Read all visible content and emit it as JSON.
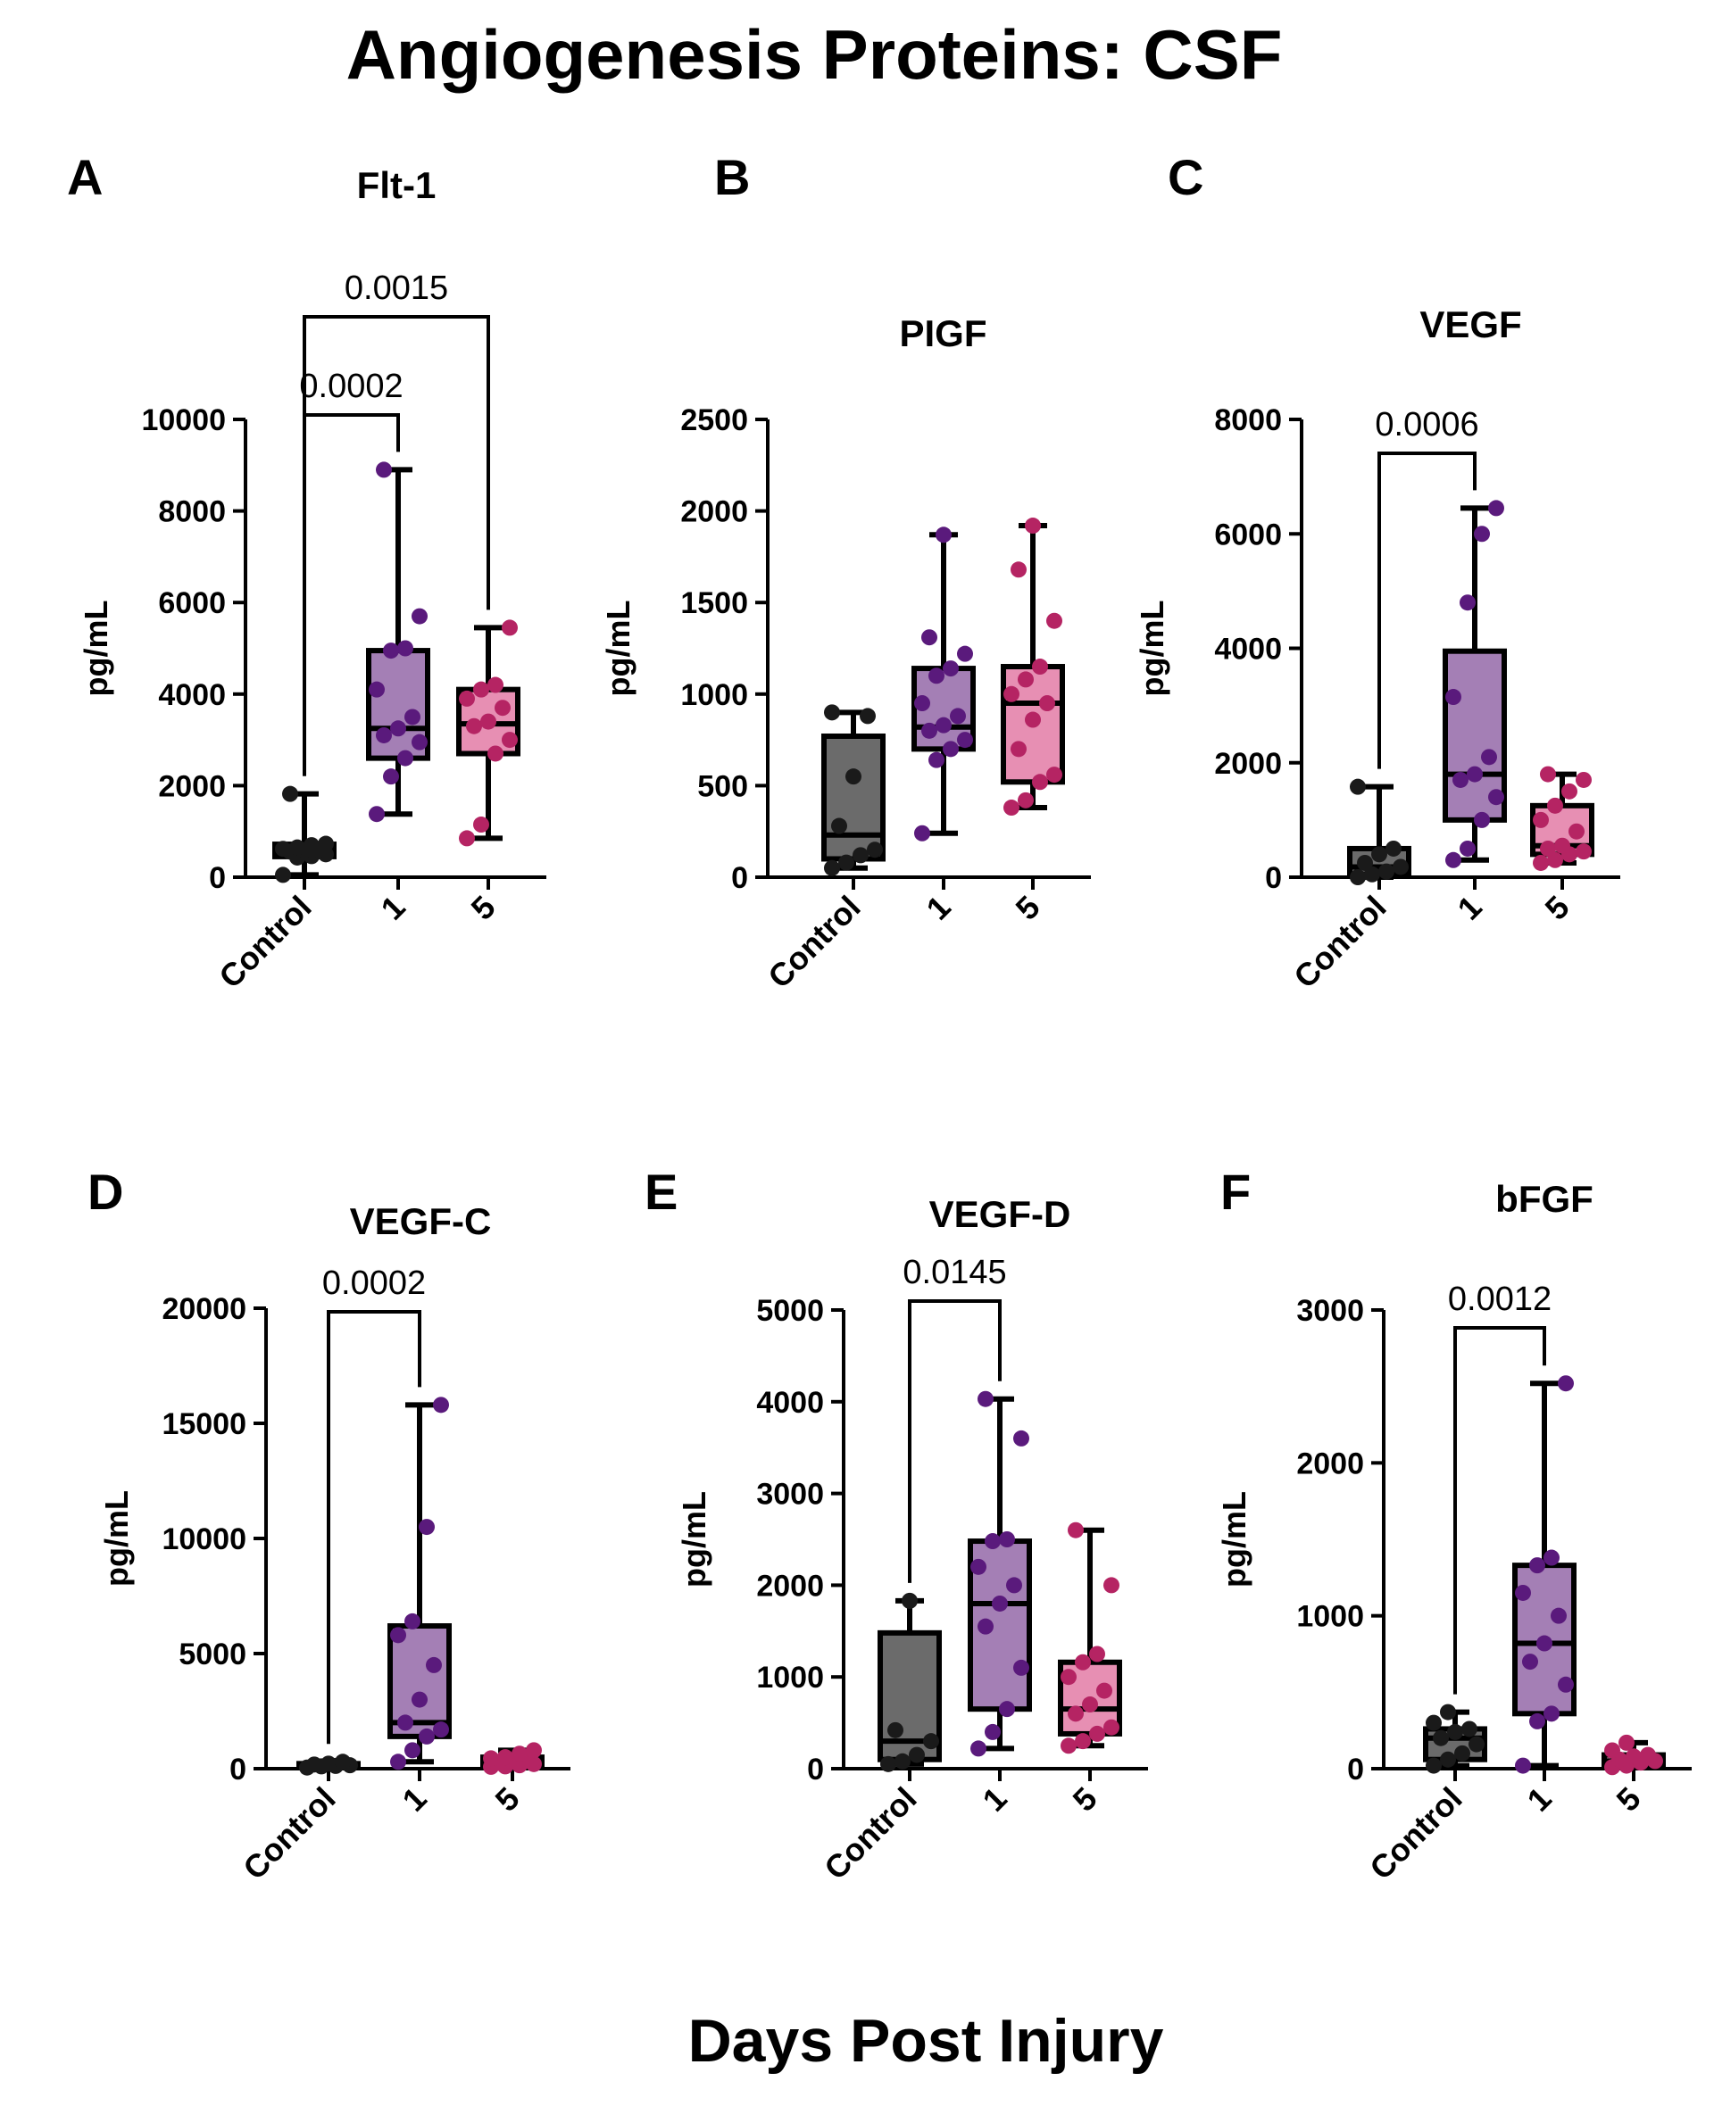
{
  "figure": {
    "title": "Angiogenesis Proteins: CSF",
    "xlabel": "Days Post Injury"
  },
  "colors": {
    "control_fill": "#6b6b6b",
    "day1_fill": "#a47fb5",
    "day5_fill": "#e78fb3",
    "control_dot": "#1a1a1a",
    "day1_dot": "#5a1a7c",
    "day5_dot": "#b52463",
    "axis": "#000000"
  },
  "chart_data": [
    {
      "panel": "A",
      "type": "box",
      "title": "Flt-1",
      "ylabel": "pg/mL",
      "categories": [
        "Control",
        "1",
        "5"
      ],
      "ylim": [
        0,
        10000
      ],
      "yticks": [
        0,
        2000,
        4000,
        6000,
        8000,
        10000
      ],
      "boxes": [
        {
          "min": 50,
          "q1": 450,
          "median": 600,
          "q3": 720,
          "max": 1820,
          "points": [
            50,
            430,
            460,
            500,
            560,
            590,
            600,
            620,
            650,
            700,
            730,
            1820
          ]
        },
        {
          "min": 1380,
          "q1": 2600,
          "median": 3250,
          "q3": 4950,
          "max": 8900,
          "points": [
            1380,
            2200,
            2600,
            2950,
            3100,
            3250,
            3500,
            4100,
            4950,
            5000,
            5700,
            8900
          ]
        },
        {
          "min": 850,
          "q1": 2700,
          "median": 3350,
          "q3": 4100,
          "max": 5450,
          "points": [
            850,
            1150,
            2700,
            3000,
            3300,
            3400,
            3700,
            3900,
            4100,
            4200,
            5450
          ]
        }
      ],
      "comparisons": [
        {
          "from": 0,
          "to": 1,
          "label": "0.0002",
          "level": 0
        },
        {
          "from": 0,
          "to": 2,
          "label": "0.0015",
          "level": 1
        }
      ]
    },
    {
      "panel": "B",
      "type": "box",
      "title": "PIGF",
      "ylabel": "pg/mL",
      "categories": [
        "Control",
        "1",
        "5"
      ],
      "ylim": [
        0,
        2500
      ],
      "yticks": [
        0,
        500,
        1000,
        1500,
        2000,
        2500
      ],
      "boxes": [
        {
          "min": 50,
          "q1": 100,
          "median": 230,
          "q3": 770,
          "max": 900,
          "points": [
            50,
            80,
            120,
            150,
            280,
            550,
            880,
            900
          ]
        },
        {
          "min": 240,
          "q1": 700,
          "median": 820,
          "q3": 1140,
          "max": 1870,
          "points": [
            240,
            640,
            700,
            750,
            800,
            830,
            880,
            950,
            1100,
            1140,
            1220,
            1310,
            1870
          ]
        },
        {
          "min": 380,
          "q1": 520,
          "median": 950,
          "q3": 1150,
          "max": 1920,
          "points": [
            380,
            420,
            520,
            560,
            700,
            860,
            950,
            1000,
            1080,
            1150,
            1400,
            1680,
            1920
          ]
        }
      ],
      "comparisons": []
    },
    {
      "panel": "C",
      "type": "box",
      "title": "VEGF",
      "ylabel": "pg/mL",
      "categories": [
        "Control",
        "1",
        "5"
      ],
      "ylim": [
        0,
        8000
      ],
      "yticks": [
        0,
        2000,
        4000,
        6000,
        8000
      ],
      "boxes": [
        {
          "min": 0,
          "q1": 50,
          "median": 180,
          "q3": 500,
          "max": 1580,
          "points": [
            0,
            50,
            100,
            180,
            250,
            400,
            500,
            1580
          ]
        },
        {
          "min": 300,
          "q1": 1000,
          "median": 1800,
          "q3": 3950,
          "max": 6450,
          "points": [
            300,
            500,
            1000,
            1400,
            1700,
            1800,
            2100,
            3150,
            4800,
            6000,
            6450
          ]
        },
        {
          "min": 250,
          "q1": 400,
          "median": 550,
          "q3": 1250,
          "max": 1800,
          "points": [
            250,
            300,
            400,
            450,
            500,
            550,
            800,
            1000,
            1250,
            1500,
            1700,
            1800
          ]
        }
      ],
      "comparisons": [
        {
          "from": 0,
          "to": 1,
          "label": "0.0006",
          "level": 0
        }
      ]
    },
    {
      "panel": "D",
      "type": "box",
      "title": "VEGF-C",
      "ylabel": "pg/mL",
      "categories": [
        "Control",
        "1",
        "5"
      ],
      "ylim": [
        0,
        20000
      ],
      "yticks": [
        0,
        5000,
        10000,
        15000,
        20000
      ],
      "boxes": [
        {
          "min": 50,
          "q1": 100,
          "median": 150,
          "q3": 220,
          "max": 300,
          "points": [
            50,
            100,
            120,
            150,
            180,
            220,
            300
          ]
        },
        {
          "min": 300,
          "q1": 1400,
          "median": 2000,
          "q3": 6200,
          "max": 15800,
          "points": [
            300,
            800,
            1400,
            1700,
            2000,
            3000,
            4500,
            5800,
            6400,
            10500,
            15800
          ]
        },
        {
          "min": 80,
          "q1": 150,
          "median": 300,
          "q3": 500,
          "max": 800,
          "points": [
            80,
            100,
            150,
            200,
            250,
            300,
            350,
            450,
            500,
            650,
            800
          ]
        }
      ],
      "comparisons": [
        {
          "from": 0,
          "to": 1,
          "label": "0.0002",
          "level": 0
        }
      ]
    },
    {
      "panel": "E",
      "type": "box",
      "title": "VEGF-D",
      "ylabel": "pg/mL",
      "categories": [
        "Control",
        "1",
        "5"
      ],
      "ylim": [
        0,
        5000
      ],
      "yticks": [
        0,
        1000,
        2000,
        3000,
        4000,
        5000
      ],
      "boxes": [
        {
          "min": 50,
          "q1": 100,
          "median": 300,
          "q3": 1480,
          "max": 1830,
          "points": [
            50,
            80,
            150,
            300,
            420,
            1830
          ]
        },
        {
          "min": 220,
          "q1": 650,
          "median": 1800,
          "q3": 2480,
          "max": 4030,
          "points": [
            220,
            400,
            650,
            1100,
            1550,
            1800,
            2000,
            2200,
            2480,
            2500,
            3600,
            4030
          ]
        },
        {
          "min": 250,
          "q1": 380,
          "median": 650,
          "q3": 1160,
          "max": 2600,
          "points": [
            250,
            300,
            380,
            450,
            600,
            700,
            850,
            1000,
            1160,
            1250,
            2000,
            2600
          ]
        }
      ],
      "comparisons": [
        {
          "from": 0,
          "to": 1,
          "label": "0.0145",
          "level": 0
        }
      ]
    },
    {
      "panel": "F",
      "type": "box",
      "title": "bFGF",
      "ylabel": "pg/mL",
      "categories": [
        "Control",
        "1",
        "5"
      ],
      "ylim": [
        0,
        3000
      ],
      "yticks": [
        0,
        1000,
        2000,
        3000
      ],
      "boxes": [
        {
          "min": 20,
          "q1": 60,
          "median": 200,
          "q3": 260,
          "max": 370,
          "points": [
            20,
            60,
            100,
            160,
            200,
            240,
            260,
            300,
            370
          ]
        },
        {
          "min": 20,
          "q1": 360,
          "median": 820,
          "q3": 1330,
          "max": 2520,
          "points": [
            20,
            310,
            360,
            550,
            700,
            820,
            1000,
            1150,
            1330,
            1380,
            2520
          ]
        },
        {
          "min": 10,
          "q1": 20,
          "median": 50,
          "q3": 90,
          "max": 170,
          "points": [
            10,
            20,
            40,
            50,
            60,
            80,
            90,
            120,
            170
          ]
        }
      ],
      "comparisons": [
        {
          "from": 0,
          "to": 1,
          "label": "0.0012",
          "level": 0
        }
      ]
    }
  ]
}
